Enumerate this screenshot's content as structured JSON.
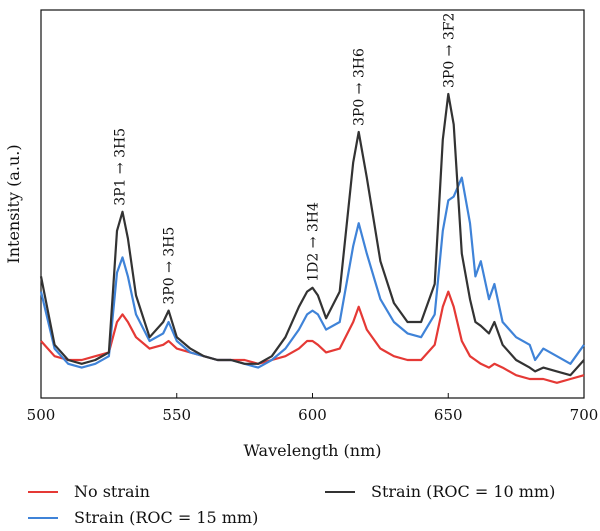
{
  "chart_data": {
    "type": "line",
    "xlabel": "Wavelength (nm)",
    "ylabel": "Intensity (a.u.)",
    "xlim": [
      500,
      700
    ],
    "x_ticks": [
      500,
      550,
      600,
      650,
      700
    ],
    "ylim": [
      0,
      100
    ],
    "grid": false,
    "y_tick_labels": false,
    "legend_placement": "bottom",
    "x": [
      500,
      505,
      510,
      515,
      520,
      525,
      528,
      530,
      532,
      535,
      540,
      545,
      547,
      550,
      555,
      560,
      565,
      570,
      575,
      580,
      585,
      590,
      595,
      598,
      600,
      602,
      605,
      610,
      615,
      617,
      620,
      625,
      630,
      635,
      640,
      645,
      648,
      650,
      652,
      655,
      658,
      660,
      662,
      665,
      667,
      670,
      675,
      680,
      682,
      685,
      690,
      695,
      700
    ],
    "series": [
      {
        "name": "No strain",
        "color": "#e53935",
        "values": [
          15,
          11,
          10,
          10,
          11,
          12,
          20,
          22,
          20,
          16,
          13,
          14,
          15,
          13,
          12,
          11,
          10,
          10,
          10,
          9,
          10,
          11,
          13,
          15,
          15,
          14,
          12,
          13,
          20,
          24,
          18,
          13,
          11,
          10,
          10,
          14,
          24,
          28,
          24,
          15,
          11,
          10,
          9,
          8,
          9,
          8,
          6,
          5,
          5,
          5,
          4,
          5,
          6
        ]
      },
      {
        "name": "Strain (ROC = 15 mm)",
        "color": "#3f83d8",
        "values": [
          28,
          13,
          9,
          8,
          9,
          11,
          33,
          37,
          32,
          22,
          15,
          17,
          20,
          15,
          12,
          11,
          10,
          10,
          9,
          8,
          10,
          13,
          18,
          22,
          23,
          22,
          18,
          20,
          40,
          46,
          38,
          26,
          20,
          17,
          16,
          22,
          44,
          52,
          53,
          58,
          46,
          32,
          36,
          26,
          30,
          20,
          16,
          14,
          10,
          13,
          11,
          9,
          14
        ]
      },
      {
        "name": "Strain (ROC = 10 mm)",
        "color": "#333333",
        "values": [
          32,
          14,
          10,
          9,
          10,
          12,
          44,
          49,
          42,
          27,
          16,
          20,
          23,
          16,
          13,
          11,
          10,
          10,
          9,
          9,
          11,
          16,
          24,
          28,
          29,
          27,
          21,
          28,
          62,
          70,
          58,
          36,
          25,
          20,
          20,
          30,
          68,
          80,
          72,
          38,
          26,
          20,
          19,
          17,
          20,
          14,
          10,
          8,
          7,
          8,
          7,
          6,
          10
        ]
      }
    ],
    "annotations": [
      {
        "x": 529,
        "y": 49,
        "text": "3P1 → 3H5"
      },
      {
        "x": 547,
        "y": 23,
        "text": "3P0 → 3H5"
      },
      {
        "x": 600,
        "y": 29,
        "text": "1D2 → 3H4"
      },
      {
        "x": 617,
        "y": 70,
        "text": "3P0 → 3H6"
      },
      {
        "x": 650,
        "y": 80,
        "text": "3P0 → 3F2"
      }
    ]
  },
  "legend": {
    "no_strain": "No strain",
    "roc15": "Strain (ROC = 15 mm)",
    "roc10": "Strain (ROC = 10 mm)"
  }
}
